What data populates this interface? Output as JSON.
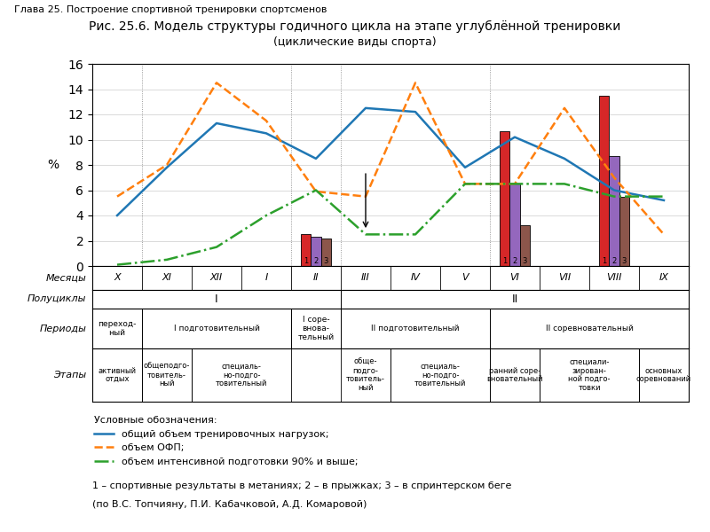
{
  "chart_data": {
    "type": "line",
    "header": "Глава 25. Построение спортивной тренировки спортсменов",
    "title": "Рис. 25.6. Модель структуры годичного цикла на этапе углублённой тренировки",
    "subtitle": "(циклические виды спорта)",
    "x_label": "Месяцы",
    "y_label": "%",
    "categories": [
      "X",
      "XI",
      "XII",
      "I",
      "II",
      "III",
      "IV",
      "V",
      "VI",
      "VII",
      "VIII",
      "IX"
    ],
    "series": [
      {
        "name": "общий объем тренировочных нагрузок;",
        "type": "line",
        "line_style": "solid",
        "values": [
          4.0,
          7.8,
          11.3,
          10.5,
          8.5,
          12.5,
          12.2,
          7.8,
          10.2,
          8.5,
          6.0,
          5.2
        ]
      },
      {
        "name": "объем ОФП;",
        "type": "line",
        "line_style": "dashed",
        "values": [
          5.5,
          8.0,
          14.5,
          11.5,
          5.9,
          5.5,
          14.5,
          6.5,
          6.5,
          12.5,
          7.0,
          2.5
        ]
      },
      {
        "name": "объем интенсивной подготовки 90% и выше;",
        "type": "line",
        "line_style": "dashdot",
        "values": [
          0.1,
          0.5,
          1.5,
          4.0,
          6.0,
          2.5,
          2.5,
          6.5,
          6.5,
          6.5,
          5.5,
          5.5
        ]
      },
      {
        "name": "1",
        "type": "bar",
        "values": [
          null,
          null,
          null,
          null,
          2.5,
          null,
          null,
          null,
          10.7,
          null,
          13.5,
          null
        ]
      },
      {
        "name": "2",
        "type": "bar",
        "values": [
          null,
          null,
          null,
          null,
          2.3,
          null,
          null,
          null,
          6.5,
          null,
          8.7,
          null
        ]
      },
      {
        "name": "3",
        "type": "bar",
        "values": [
          null,
          null,
          null,
          null,
          2.2,
          null,
          null,
          null,
          3.2,
          null,
          5.5,
          null
        ]
      }
    ],
    "ylim": [
      0,
      16
    ],
    "yticks": [
      0,
      2,
      4,
      6,
      8,
      10,
      12,
      14,
      16
    ],
    "grid": true,
    "legend": "upper left",
    "legend_title": "Условные обозначения:",
    "arrows": [
      {
        "category": "III",
        "y_from": 7.5,
        "y_to": 2.8
      }
    ],
    "rows": [
      {
        "label": "Полуциклы",
        "spans": [
          {
            "from": "X",
            "to": "II",
            "label": "I"
          },
          {
            "from": "III",
            "to": "IX",
            "label": "II"
          }
        ]
      },
      {
        "label": "Периоды",
        "spans": [
          {
            "from": "X",
            "to": "X",
            "label": "переход-\nный"
          },
          {
            "from": "XI",
            "to": "I",
            "label": "I подготовительный"
          },
          {
            "from": "II",
            "to": "II",
            "label": "I соре-\nвнова-\nтельный"
          },
          {
            "from": "III",
            "to": "V",
            "label": "II подготовительный"
          },
          {
            "from": "VI",
            "to": "IX",
            "label": "II соревновательный"
          }
        ]
      },
      {
        "label": "Этапы",
        "spans": [
          {
            "from": "X",
            "to": "X",
            "label": "активный\nотдых"
          },
          {
            "from": "XI",
            "to": "XI",
            "label": "общеподго-\nтовитель-\nный"
          },
          {
            "from": "XII",
            "to": "I",
            "label": "специаль-\nно-подго-\nтовительный"
          },
          {
            "from": "III",
            "to": "III",
            "label": "обще-\nподго-\nтовитель-\nный"
          },
          {
            "from": "IV",
            "to": "V",
            "label": "специаль-\nно-подго-\nтовительный"
          },
          {
            "from": "VI",
            "to": "VI",
            "label": "ранний соре-\nвновательный"
          },
          {
            "from": "VII",
            "to": "VIII",
            "label": "специали-\nзирован-\nной подго-\nтовки"
          },
          {
            "from": "IX",
            "to": "IX",
            "label": "основных\nсоревнований"
          }
        ]
      }
    ],
    "footnotes": [
      "1 – спортивные результаты в метаниях; 2 – в прыжках; 3 – в спринтерском беге",
      "(по В.С. Топчияну, П.И. Кабачковой, А.Д. Комаровой)"
    ]
  }
}
